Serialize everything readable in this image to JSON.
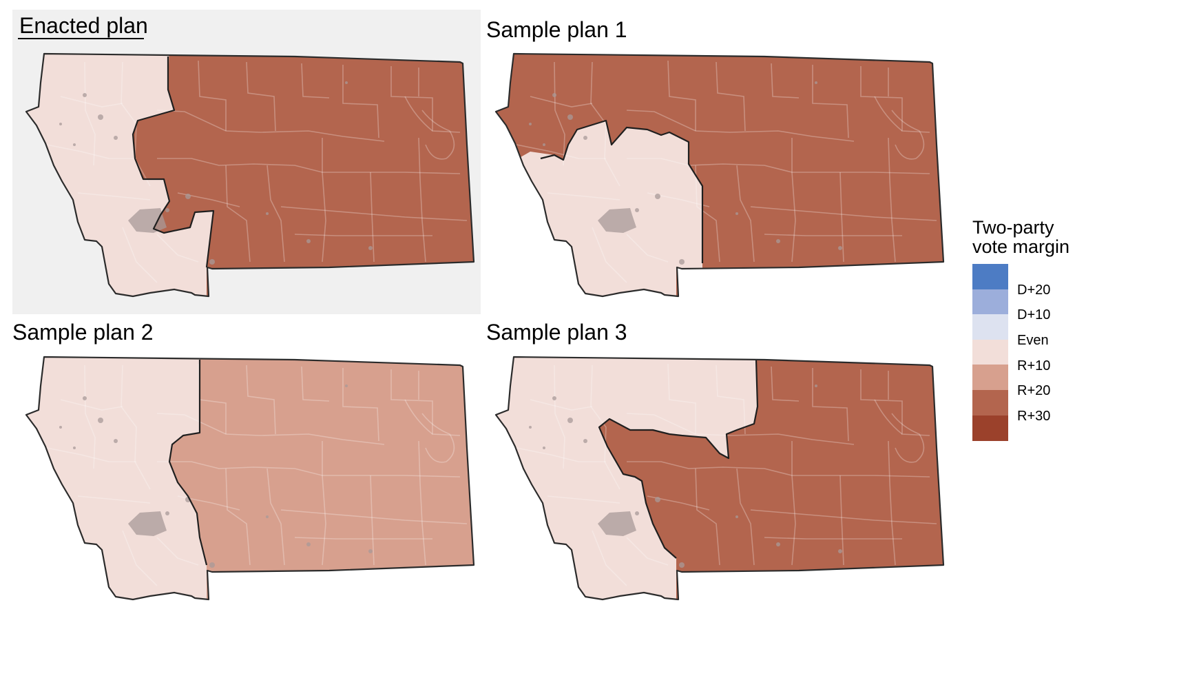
{
  "panels": [
    {
      "title": "Enacted plan",
      "highlighted": true,
      "west_margin": "R+10",
      "east_margin": "R+30"
    },
    {
      "title": "Sample plan 1",
      "highlighted": false,
      "west_margin": "R+10",
      "east_margin": "R+30"
    },
    {
      "title": "Sample plan 2",
      "highlighted": false,
      "west_margin": "R+10",
      "east_margin": "R+20"
    },
    {
      "title": "Sample plan 3",
      "highlighted": false,
      "west_margin": "R+10",
      "east_margin": "R+30"
    }
  ],
  "legend": {
    "title_line1": "Two-party",
    "title_line2": "vote margin",
    "bins": [
      {
        "color": "#4d7cc4"
      },
      {
        "color": "#9caedb"
      },
      {
        "color": "#dde2f0"
      },
      {
        "color": "#f2ded9"
      },
      {
        "color": "#d7a08e"
      },
      {
        "color": "#b3654e"
      },
      {
        "color": "#9b412b"
      }
    ],
    "labels": [
      "D+20",
      "D+10",
      "Even",
      "R+10",
      "R+20",
      "R+30"
    ]
  },
  "colors": {
    "R+10": "#f2ded9",
    "R+20": "#d7a08e",
    "R+30": "#b3654e",
    "panel_highlight_bg": "#f0f0f0",
    "city_overlay": "#a89a98"
  }
}
